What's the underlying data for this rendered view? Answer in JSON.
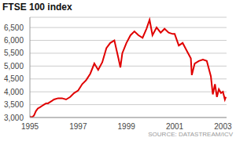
{
  "chart_data": {
    "type": "line",
    "title": "FTSE 100 index",
    "source": "SOURCE: DATASTREAM/ICV",
    "x": [
      1995.0,
      1995.08,
      1995.17,
      1995.25,
      1995.33,
      1995.42,
      1995.5,
      1995.58,
      1995.67,
      1995.75,
      1995.83,
      1995.92,
      1996.0,
      1996.17,
      1996.33,
      1996.5,
      1996.67,
      1996.83,
      1997.0,
      1997.17,
      1997.33,
      1997.5,
      1997.67,
      1997.83,
      1998.0,
      1998.17,
      1998.33,
      1998.5,
      1998.67,
      1998.75,
      1998.83,
      1999.0,
      1999.17,
      1999.33,
      1999.5,
      1999.67,
      1999.83,
      1999.96,
      2000.08,
      2000.25,
      2000.42,
      2000.58,
      2000.75,
      2000.92,
      2001.0,
      2001.17,
      2001.33,
      2001.5,
      2001.67,
      2001.71,
      2001.83,
      2002.0,
      2002.17,
      2002.33,
      2002.5,
      2002.58,
      2002.67,
      2002.75,
      2002.83,
      2002.92,
      2003.0,
      2003.08,
      2003.12
    ],
    "values": [
      3050,
      3000,
      3080,
      3250,
      3350,
      3400,
      3450,
      3500,
      3550,
      3550,
      3600,
      3650,
      3700,
      3750,
      3750,
      3700,
      3800,
      3950,
      4050,
      4300,
      4450,
      4700,
      5100,
      4850,
      5150,
      5700,
      5900,
      6000,
      5300,
      4950,
      5500,
      5900,
      6200,
      6350,
      6200,
      6100,
      6450,
      6800,
      6200,
      6500,
      6300,
      6450,
      6300,
      6250,
      6250,
      5800,
      5900,
      5600,
      5300,
      4650,
      5100,
      5200,
      5250,
      5200,
      4600,
      3900,
      4300,
      3800,
      4100,
      3950,
      4000,
      3700,
      3800
    ],
    "color": "#e00000",
    "xlim": [
      1995,
      2003.15
    ],
    "xticks": [
      1995,
      1997,
      1999,
      2001,
      2003
    ],
    "ylim": [
      3000,
      6900
    ],
    "yticks": [
      {
        "value": 3000,
        "label": "3,000"
      },
      {
        "value": 3500,
        "label": "3,500"
      },
      {
        "value": 4000,
        "label": "4,000"
      },
      {
        "value": 4500,
        "label": "4,500"
      },
      {
        "value": 5000,
        "label": "5,000"
      },
      {
        "value": 5500,
        "label": "5,500"
      },
      {
        "value": 6000,
        "label": "6,000"
      },
      {
        "value": 6500,
        "label": "6,500"
      }
    ],
    "grid": true
  }
}
